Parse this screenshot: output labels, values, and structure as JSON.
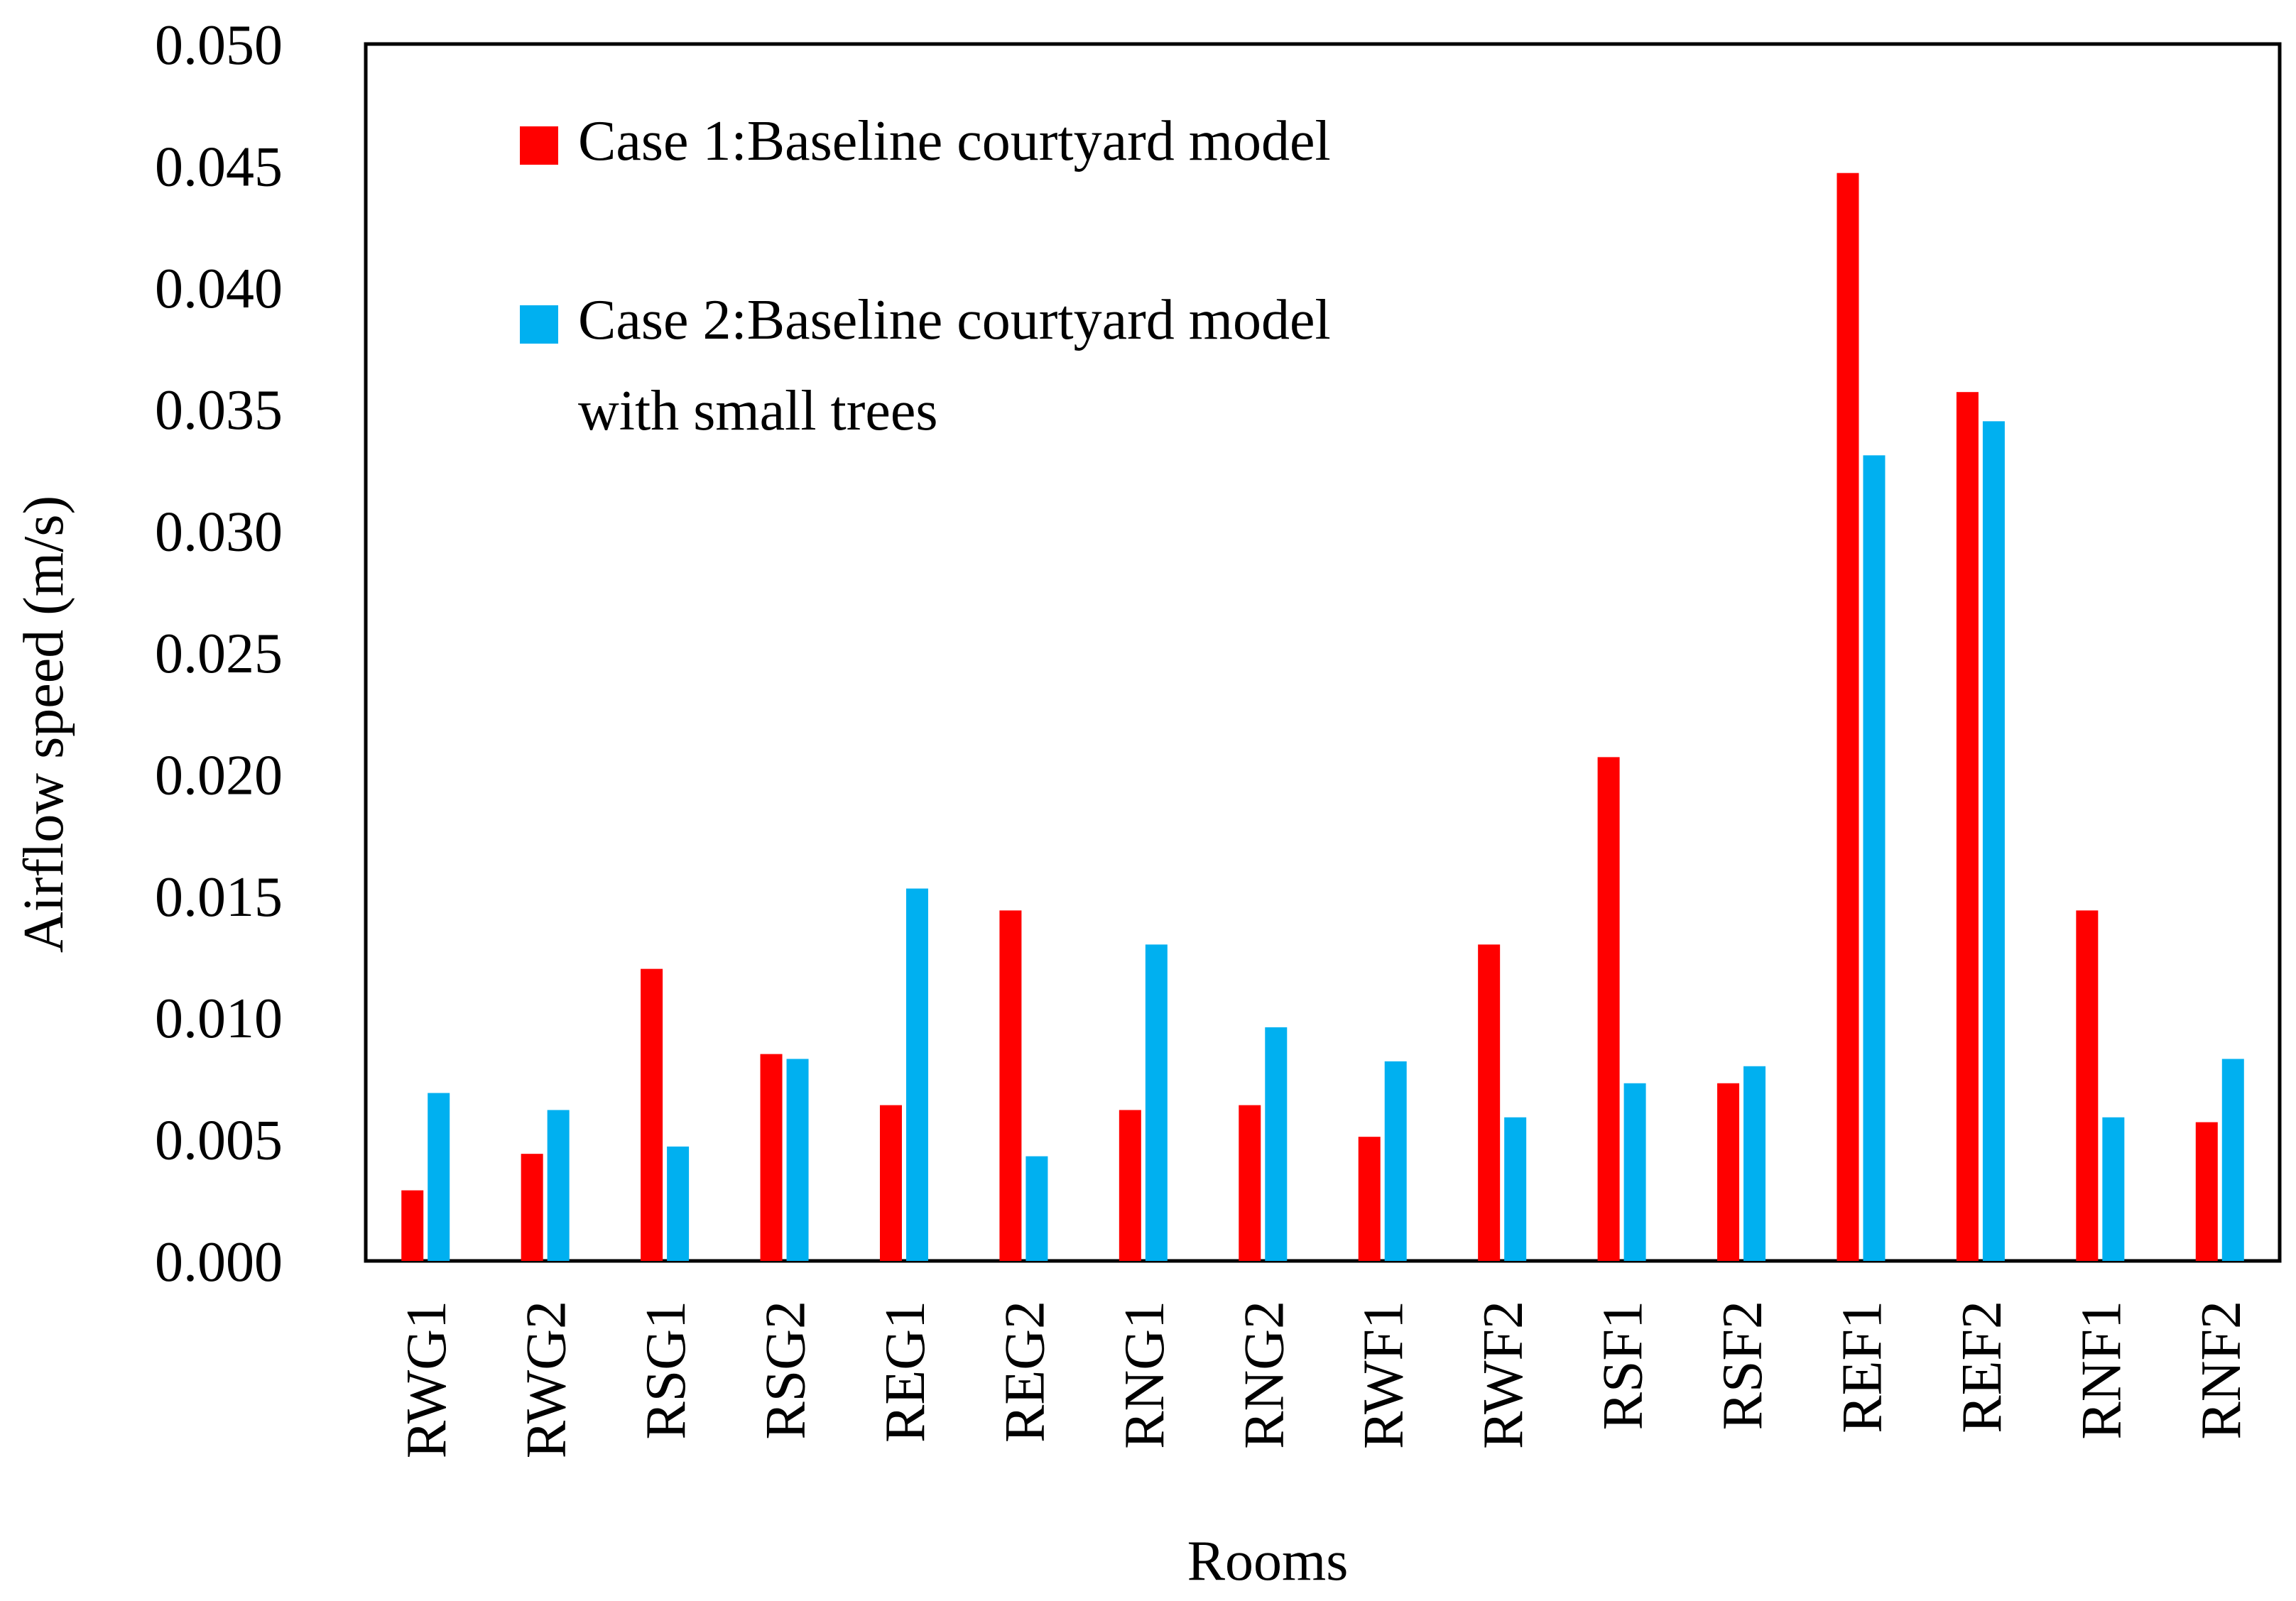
{
  "chart_data": {
    "type": "bar",
    "title": "",
    "xlabel": "Rooms",
    "ylabel": "Airflow speed (m/s)",
    "ylim": [
      0,
      0.05
    ],
    "yticks": [
      "0.000",
      "0.005",
      "0.010",
      "0.015",
      "0.020",
      "0.025",
      "0.030",
      "0.035",
      "0.040",
      "0.045",
      "0.050"
    ],
    "categories": [
      "RWG1",
      "RWG2",
      "RSG1",
      "RSG2",
      "REG1",
      "REG2",
      "RNG1",
      "RNG2",
      "RWF1",
      "RWF2",
      "RSF1",
      "RSF2",
      "REF1",
      "REF2",
      "RNF1",
      "RNF2"
    ],
    "series": [
      {
        "name": "Case 1:Baseline courtyard model",
        "color": "#ff0000",
        "values": [
          0.0029,
          0.0044,
          0.012,
          0.0085,
          0.0064,
          0.0144,
          0.0062,
          0.0064,
          0.0051,
          0.013,
          0.0207,
          0.0073,
          0.0447,
          0.0357,
          0.0144,
          0.0057
        ]
      },
      {
        "name": "Case 2:Baseline courtyard model",
        "name_line2": "with small trees",
        "color": "#00b0f0",
        "values": [
          0.0069,
          0.0062,
          0.0047,
          0.0083,
          0.0153,
          0.0043,
          0.013,
          0.0096,
          0.0082,
          0.0059,
          0.0073,
          0.008,
          0.0331,
          0.0345,
          0.0059,
          0.0083
        ]
      }
    ],
    "grid": false,
    "legend_position": "top-left"
  }
}
